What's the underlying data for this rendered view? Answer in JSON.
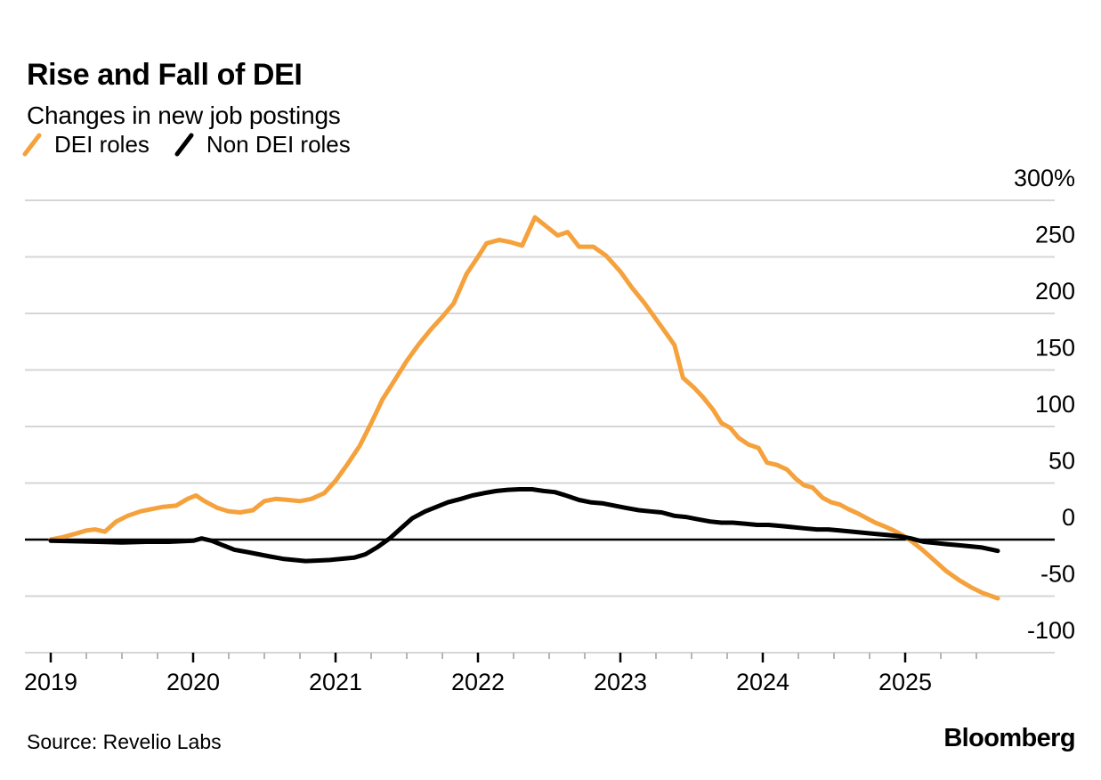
{
  "header": {
    "title": "Rise and Fall of DEI",
    "subtitle": "Changes in new job postings"
  },
  "legend": {
    "items": [
      {
        "label": "DEI roles",
        "color": "#F5A13C"
      },
      {
        "label": "Non DEI roles",
        "color": "#000000"
      }
    ]
  },
  "footer": {
    "source": "Source: Revelio Labs",
    "brand": "Bloomberg"
  },
  "chart_data": {
    "type": "line",
    "title": "Rise and Fall of DEI",
    "subtitle": "Changes in new job postings",
    "unit": "%",
    "grid": "horizontal",
    "legend_position": "top-left",
    "y_axis": {
      "side": "right",
      "range": [
        -100,
        300
      ],
      "ticks": [
        {
          "value": 300,
          "label": "300%"
        },
        {
          "value": 250,
          "label": "250"
        },
        {
          "value": 200,
          "label": "200"
        },
        {
          "value": 150,
          "label": "150"
        },
        {
          "value": 100,
          "label": "100"
        },
        {
          "value": 50,
          "label": "50"
        },
        {
          "value": 0,
          "label": "0"
        },
        {
          "value": -50,
          "label": "-50"
        },
        {
          "value": -100,
          "label": "-100"
        }
      ],
      "zero_line_color": "#000000",
      "gridline_color": "#d6d6d6"
    },
    "x_axis": {
      "start": 2019,
      "end": 2025.65,
      "major_ticks": [
        2019,
        2020,
        2021,
        2022,
        2023,
        2024,
        2025
      ],
      "major_tick_labels": [
        "2019",
        "2020",
        "2021",
        "2022",
        "2023",
        "2024",
        "2025"
      ],
      "minor_tick_step": 0.25,
      "minor_tick_end": 2025.5
    },
    "series": [
      {
        "name": "DEI roles",
        "color": "#F5A13C",
        "points": [
          [
            2019.0,
            0
          ],
          [
            2019.08,
            2
          ],
          [
            2019.17,
            5
          ],
          [
            2019.25,
            8
          ],
          [
            2019.31,
            9
          ],
          [
            2019.38,
            7
          ],
          [
            2019.46,
            16
          ],
          [
            2019.54,
            21
          ],
          [
            2019.63,
            25
          ],
          [
            2019.71,
            27
          ],
          [
            2019.79,
            29
          ],
          [
            2019.88,
            30
          ],
          [
            2019.96,
            36
          ],
          [
            2020.02,
            39
          ],
          [
            2020.08,
            34
          ],
          [
            2020.17,
            28
          ],
          [
            2020.25,
            25
          ],
          [
            2020.33,
            24
          ],
          [
            2020.42,
            26
          ],
          [
            2020.5,
            34
          ],
          [
            2020.58,
            36
          ],
          [
            2020.67,
            35
          ],
          [
            2020.75,
            34
          ],
          [
            2020.83,
            36
          ],
          [
            2020.92,
            41
          ],
          [
            2021.0,
            52
          ],
          [
            2021.08,
            66
          ],
          [
            2021.17,
            83
          ],
          [
            2021.25,
            103
          ],
          [
            2021.33,
            124
          ],
          [
            2021.42,
            142
          ],
          [
            2021.5,
            158
          ],
          [
            2021.58,
            172
          ],
          [
            2021.67,
            186
          ],
          [
            2021.75,
            197
          ],
          [
            2021.83,
            209
          ],
          [
            2021.92,
            235
          ],
          [
            2022.0,
            250
          ],
          [
            2022.06,
            262
          ],
          [
            2022.15,
            265
          ],
          [
            2022.23,
            263
          ],
          [
            2022.31,
            260
          ],
          [
            2022.4,
            285
          ],
          [
            2022.48,
            277
          ],
          [
            2022.56,
            269
          ],
          [
            2022.63,
            272
          ],
          [
            2022.71,
            259
          ],
          [
            2022.81,
            259
          ],
          [
            2022.9,
            251
          ],
          [
            2023.0,
            237
          ],
          [
            2023.08,
            223
          ],
          [
            2023.17,
            209
          ],
          [
            2023.25,
            195
          ],
          [
            2023.33,
            181
          ],
          [
            2023.38,
            172
          ],
          [
            2023.44,
            143
          ],
          [
            2023.52,
            134
          ],
          [
            2023.58,
            126
          ],
          [
            2023.65,
            115
          ],
          [
            2023.71,
            103
          ],
          [
            2023.77,
            99
          ],
          [
            2023.83,
            90
          ],
          [
            2023.9,
            84
          ],
          [
            2023.97,
            81
          ],
          [
            2024.03,
            68
          ],
          [
            2024.1,
            66
          ],
          [
            2024.17,
            62
          ],
          [
            2024.23,
            54
          ],
          [
            2024.29,
            48
          ],
          [
            2024.35,
            46
          ],
          [
            2024.42,
            37
          ],
          [
            2024.48,
            33
          ],
          [
            2024.54,
            31
          ],
          [
            2024.6,
            27
          ],
          [
            2024.67,
            23
          ],
          [
            2024.73,
            19
          ],
          [
            2024.79,
            15
          ],
          [
            2024.85,
            12
          ],
          [
            2024.92,
            8
          ],
          [
            2024.98,
            4
          ],
          [
            2025.04,
            -1
          ],
          [
            2025.12,
            -9
          ],
          [
            2025.21,
            -19
          ],
          [
            2025.29,
            -28
          ],
          [
            2025.38,
            -36
          ],
          [
            2025.46,
            -42
          ],
          [
            2025.54,
            -47
          ],
          [
            2025.65,
            -52
          ]
        ]
      },
      {
        "name": "Non DEI roles",
        "color": "#000000",
        "points": [
          [
            2019.0,
            -1
          ],
          [
            2019.17,
            -1.5
          ],
          [
            2019.33,
            -2
          ],
          [
            2019.5,
            -2.5
          ],
          [
            2019.67,
            -2
          ],
          [
            2019.83,
            -2
          ],
          [
            2020.0,
            -1
          ],
          [
            2020.06,
            1
          ],
          [
            2020.13,
            -1
          ],
          [
            2020.21,
            -5
          ],
          [
            2020.29,
            -9
          ],
          [
            2020.38,
            -11
          ],
          [
            2020.46,
            -13
          ],
          [
            2020.54,
            -15
          ],
          [
            2020.63,
            -17
          ],
          [
            2020.71,
            -18
          ],
          [
            2020.79,
            -19
          ],
          [
            2020.88,
            -18.5
          ],
          [
            2020.96,
            -18
          ],
          [
            2021.04,
            -17
          ],
          [
            2021.13,
            -16
          ],
          [
            2021.21,
            -13
          ],
          [
            2021.29,
            -7
          ],
          [
            2021.38,
            1
          ],
          [
            2021.46,
            10
          ],
          [
            2021.54,
            19
          ],
          [
            2021.63,
            25
          ],
          [
            2021.71,
            29
          ],
          [
            2021.79,
            33
          ],
          [
            2021.88,
            36
          ],
          [
            2021.96,
            39
          ],
          [
            2022.04,
            41
          ],
          [
            2022.13,
            43
          ],
          [
            2022.21,
            44
          ],
          [
            2022.29,
            44.5
          ],
          [
            2022.38,
            44.5
          ],
          [
            2022.46,
            43
          ],
          [
            2022.54,
            42
          ],
          [
            2022.63,
            38.5
          ],
          [
            2022.71,
            35
          ],
          [
            2022.79,
            33
          ],
          [
            2022.88,
            32
          ],
          [
            2022.96,
            30
          ],
          [
            2023.04,
            28
          ],
          [
            2023.13,
            26
          ],
          [
            2023.21,
            25
          ],
          [
            2023.29,
            24
          ],
          [
            2023.38,
            21
          ],
          [
            2023.46,
            20
          ],
          [
            2023.54,
            18
          ],
          [
            2023.63,
            16
          ],
          [
            2023.71,
            15
          ],
          [
            2023.79,
            15
          ],
          [
            2023.88,
            14
          ],
          [
            2023.96,
            13
          ],
          [
            2024.04,
            13
          ],
          [
            2024.13,
            12
          ],
          [
            2024.21,
            11
          ],
          [
            2024.29,
            10
          ],
          [
            2024.38,
            9
          ],
          [
            2024.46,
            9
          ],
          [
            2024.54,
            8
          ],
          [
            2024.63,
            7
          ],
          [
            2024.71,
            6
          ],
          [
            2024.79,
            5
          ],
          [
            2024.88,
            4
          ],
          [
            2024.96,
            3
          ],
          [
            2025.04,
            1
          ],
          [
            2025.13,
            -2
          ],
          [
            2025.21,
            -3
          ],
          [
            2025.29,
            -4
          ],
          [
            2025.38,
            -5
          ],
          [
            2025.46,
            -6
          ],
          [
            2025.54,
            -7
          ],
          [
            2025.65,
            -10
          ]
        ]
      }
    ]
  }
}
